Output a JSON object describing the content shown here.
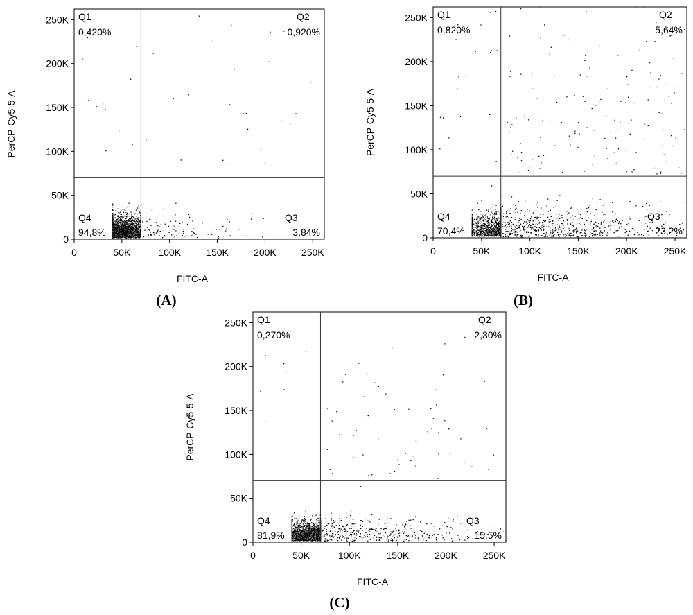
{
  "chart_data": [
    {
      "type": "scatter",
      "panel_label": "(A)",
      "xlabel": "FITC-A",
      "ylabel": "PerCP-Cy5-5-A",
      "xlim": [
        0,
        262144
      ],
      "ylim": [
        0,
        262144
      ],
      "x_ticks": [
        "0",
        "50K",
        "100K",
        "150K",
        "200K",
        "250K"
      ],
      "y_ticks": [
        "0",
        "50K",
        "100K",
        "150K",
        "200K",
        "250K"
      ],
      "gate": {
        "x": 70000,
        "y": 70000
      },
      "quadrants": [
        {
          "name": "Q1",
          "value": "0,420%"
        },
        {
          "name": "Q2",
          "value": "0,920%"
        },
        {
          "name": "Q3",
          "value": "3,84%"
        },
        {
          "name": "Q4",
          "value": "94,8%"
        }
      ],
      "quadrant_fractions": {
        "Q1": 0.0042,
        "Q2": 0.0092,
        "Q3": 0.0384,
        "Q4": 0.948
      },
      "population": {
        "center_x": 70000,
        "spread_x": 35000,
        "center_y": 18000,
        "spread_y": 11000
      },
      "grid": false,
      "legend": "none"
    },
    {
      "type": "scatter",
      "panel_label": "(B)",
      "xlabel": "FITC-A",
      "ylabel": "PerCP-Cy5-5-A",
      "xlim": [
        0,
        262144
      ],
      "ylim": [
        0,
        262144
      ],
      "x_ticks": [
        "0",
        "50K",
        "100K",
        "150K",
        "200K",
        "250K"
      ],
      "y_ticks": [
        "0",
        "50K",
        "100K",
        "150K",
        "200K",
        "250K"
      ],
      "gate": {
        "x": 70000,
        "y": 70000
      },
      "quadrants": [
        {
          "name": "Q1",
          "value": "0,820%"
        },
        {
          "name": "Q2",
          "value": "5,64%"
        },
        {
          "name": "Q3",
          "value": "23,2%"
        },
        {
          "name": "Q4",
          "value": "70,4%"
        }
      ],
      "quadrant_fractions": {
        "Q1": 0.0082,
        "Q2": 0.0564,
        "Q3": 0.232,
        "Q4": 0.704
      },
      "population": {
        "center_x": 95000,
        "spread_x": 55000,
        "center_y": 14000,
        "spread_y": 12000
      },
      "grid": false,
      "legend": "none"
    },
    {
      "type": "scatter",
      "panel_label": "(C)",
      "xlabel": "FITC-A",
      "ylabel": "PerCP-Cy5-5-A",
      "xlim": [
        0,
        262144
      ],
      "ylim": [
        0,
        262144
      ],
      "x_ticks": [
        "0",
        "50K",
        "100K",
        "150K",
        "200K",
        "250K"
      ],
      "y_ticks": [
        "0",
        "50K",
        "100K",
        "150K",
        "200K",
        "250K"
      ],
      "gate": {
        "x": 70000,
        "y": 70000
      },
      "quadrants": [
        {
          "name": "Q1",
          "value": "0,270%"
        },
        {
          "name": "Q2",
          "value": "2,30%"
        },
        {
          "name": "Q3",
          "value": "15,5%"
        },
        {
          "name": "Q4",
          "value": "81,9%"
        }
      ],
      "quadrant_fractions": {
        "Q1": 0.0027,
        "Q2": 0.023,
        "Q3": 0.155,
        "Q4": 0.819
      },
      "population": {
        "center_x": 80000,
        "spread_x": 50000,
        "center_y": 12000,
        "spread_y": 10000
      },
      "grid": false,
      "legend": "none"
    }
  ]
}
